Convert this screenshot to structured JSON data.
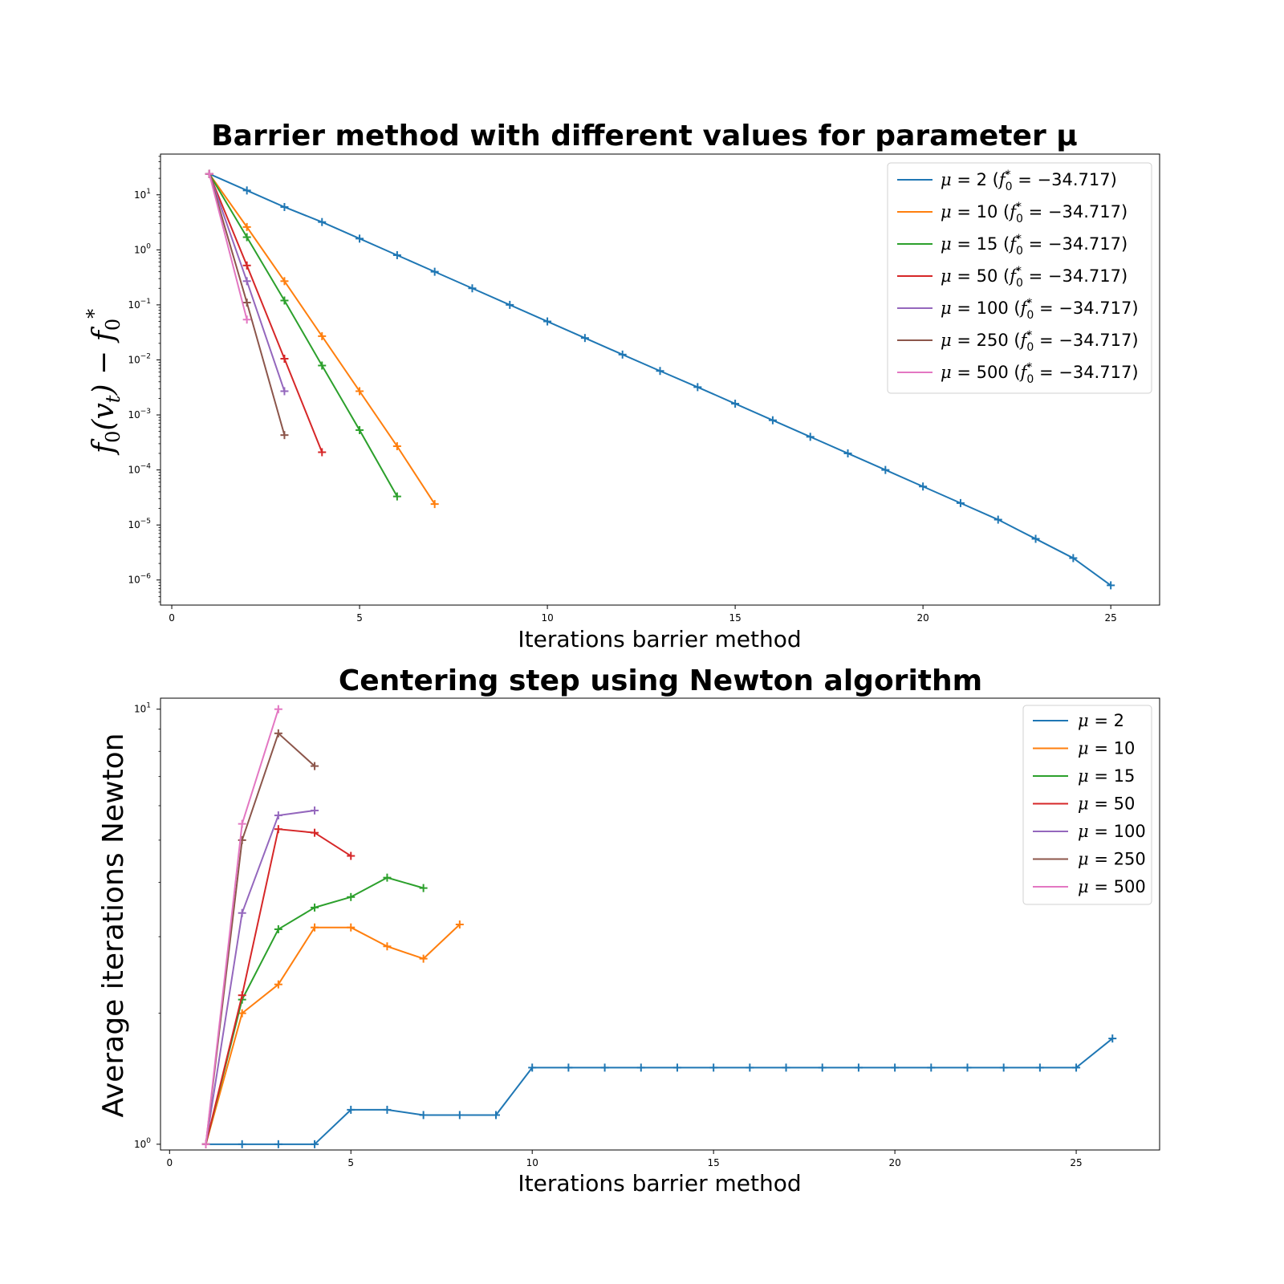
{
  "chart_data": [
    {
      "type": "line",
      "title": "Barrier method with different values for parameter μ",
      "xlabel": "Iterations barrier method",
      "ylabel": "f0(vt) − f0*",
      "yscale": "log",
      "xlim": [
        -0.3,
        26.3
      ],
      "ylim": [
        3.5e-07,
        55
      ],
      "xticks": [
        0,
        5,
        10,
        15,
        20,
        25
      ],
      "xtick_labels": [
        "0",
        "5",
        "10",
        "15",
        "20",
        "25"
      ],
      "yticks": [
        1e-06,
        1e-05,
        0.0001,
        0.001,
        0.01,
        0.1,
        1,
        10
      ],
      "ytick_bases": [
        "10",
        "10",
        "10",
        "10",
        "10",
        "10",
        "10",
        "10"
      ],
      "ytick_exps": [
        "−6",
        "−5",
        "−4",
        "−3",
        "−2",
        "−1",
        "0",
        "1"
      ],
      "marker": "+",
      "grid": false,
      "legend_position": "top-right",
      "series": [
        {
          "name": "μ = 2 (f0* = −34.717)",
          "mu": "2",
          "fstar": "−34.717",
          "color": "#1f77b4",
          "x": [
            1,
            2,
            3,
            4,
            5,
            6,
            7,
            8,
            9,
            10,
            11,
            12,
            13,
            14,
            15,
            16,
            17,
            18,
            19,
            20,
            21,
            22,
            23,
            24,
            25
          ],
          "y": [
            24,
            12,
            6,
            3.2,
            1.6,
            0.8,
            0.4,
            0.2,
            0.1,
            0.05,
            0.025,
            0.0125,
            0.0063,
            0.0032,
            0.0016,
            0.0008,
            0.0004,
            0.0002,
            0.0001,
            5e-05,
            2.5e-05,
            1.25e-05,
            5.6e-06,
            2.5e-06,
            8e-07
          ]
        },
        {
          "name": "μ = 10 (f0* = −34.717)",
          "mu": "10",
          "fstar": "−34.717",
          "color": "#ff7f0e",
          "x": [
            1,
            2,
            3,
            4,
            5,
            6,
            7
          ],
          "y": [
            24,
            2.6,
            0.27,
            0.027,
            0.0027,
            0.00027,
            2.4e-05
          ]
        },
        {
          "name": "μ = 15 (f0* = −34.717)",
          "mu": "15",
          "fstar": "−34.717",
          "color": "#2ca02c",
          "x": [
            1,
            2,
            3,
            4,
            5,
            6
          ],
          "y": [
            24,
            1.7,
            0.12,
            0.0079,
            0.00053,
            3.3e-05
          ]
        },
        {
          "name": "μ = 50 (f0* = −34.717)",
          "mu": "50",
          "fstar": "−34.717",
          "color": "#d62728",
          "x": [
            1,
            2,
            3,
            4
          ],
          "y": [
            24,
            0.52,
            0.0105,
            0.00021
          ]
        },
        {
          "name": "μ = 100 (f0* = −34.717)",
          "mu": "100",
          "fstar": "−34.717",
          "color": "#9467bd",
          "x": [
            1,
            2,
            3
          ],
          "y": [
            24,
            0.27,
            0.0027
          ]
        },
        {
          "name": "μ = 250 (f0* = −34.717)",
          "mu": "250",
          "fstar": "−34.717",
          "color": "#8c564b",
          "x": [
            1,
            2,
            3
          ],
          "y": [
            24,
            0.11,
            0.00043
          ]
        },
        {
          "name": "μ = 500 (f0* = −34.717)",
          "mu": "500",
          "fstar": "−34.717",
          "color": "#e377c2",
          "x": [
            1,
            2
          ],
          "y": [
            24,
            0.054
          ]
        }
      ]
    },
    {
      "type": "line",
      "title": "Centering step using Newton algorithm",
      "xlabel": "Iterations barrier method",
      "ylabel": "Average iterations Newton",
      "yscale": "log",
      "xlim": [
        -0.25,
        27.3
      ],
      "ylim": [
        0.97,
        10.6
      ],
      "xticks": [
        0,
        5,
        10,
        15,
        20,
        25
      ],
      "xtick_labels": [
        "0",
        "5",
        "10",
        "15",
        "20",
        "25"
      ],
      "yticks": [
        1,
        10
      ],
      "ytick_bases": [
        "10",
        "10"
      ],
      "ytick_exps": [
        "0",
        "1"
      ],
      "marker": "+",
      "grid": false,
      "legend_position": "top-right",
      "series": [
        {
          "name": "μ = 2",
          "mu": "2",
          "color": "#1f77b4",
          "x": [
            1,
            2,
            3,
            4,
            5,
            6,
            7,
            8,
            9,
            10,
            11,
            12,
            13,
            14,
            15,
            16,
            17,
            18,
            19,
            20,
            21,
            22,
            23,
            24,
            25,
            26
          ],
          "y": [
            1.0,
            1.0,
            1.0,
            1.0,
            1.2,
            1.2,
            1.167,
            1.167,
            1.167,
            1.5,
            1.5,
            1.5,
            1.5,
            1.5,
            1.5,
            1.5,
            1.5,
            1.5,
            1.5,
            1.5,
            1.5,
            1.5,
            1.5,
            1.5,
            1.5,
            1.75
          ]
        },
        {
          "name": "μ = 10",
          "mu": "10",
          "color": "#ff7f0e",
          "x": [
            1,
            2,
            3,
            4,
            5,
            6,
            7,
            8
          ],
          "y": [
            1.0,
            2.0,
            2.33,
            3.15,
            3.15,
            2.85,
            2.67,
            3.2
          ]
        },
        {
          "name": "μ = 15",
          "mu": "15",
          "color": "#2ca02c",
          "x": [
            1,
            2,
            3,
            4,
            5,
            6,
            7
          ],
          "y": [
            1.0,
            2.15,
            3.12,
            3.5,
            3.7,
            4.1,
            3.88
          ]
        },
        {
          "name": "μ = 50",
          "mu": "50",
          "color": "#d62728",
          "x": [
            1,
            2,
            3,
            4,
            5
          ],
          "y": [
            1.0,
            2.2,
            5.3,
            5.2,
            4.6
          ]
        },
        {
          "name": "μ = 100",
          "mu": "100",
          "color": "#9467bd",
          "x": [
            1,
            2,
            3,
            4
          ],
          "y": [
            1.0,
            3.4,
            5.7,
            5.85
          ]
        },
        {
          "name": "μ = 250",
          "mu": "250",
          "color": "#8c564b",
          "x": [
            1,
            2,
            3,
            4
          ],
          "y": [
            1.0,
            5.0,
            8.8,
            7.4
          ]
        },
        {
          "name": "μ = 500",
          "mu": "500",
          "color": "#e377c2",
          "x": [
            1,
            2,
            3
          ],
          "y": [
            1.0,
            5.45,
            10.0
          ]
        }
      ]
    }
  ]
}
